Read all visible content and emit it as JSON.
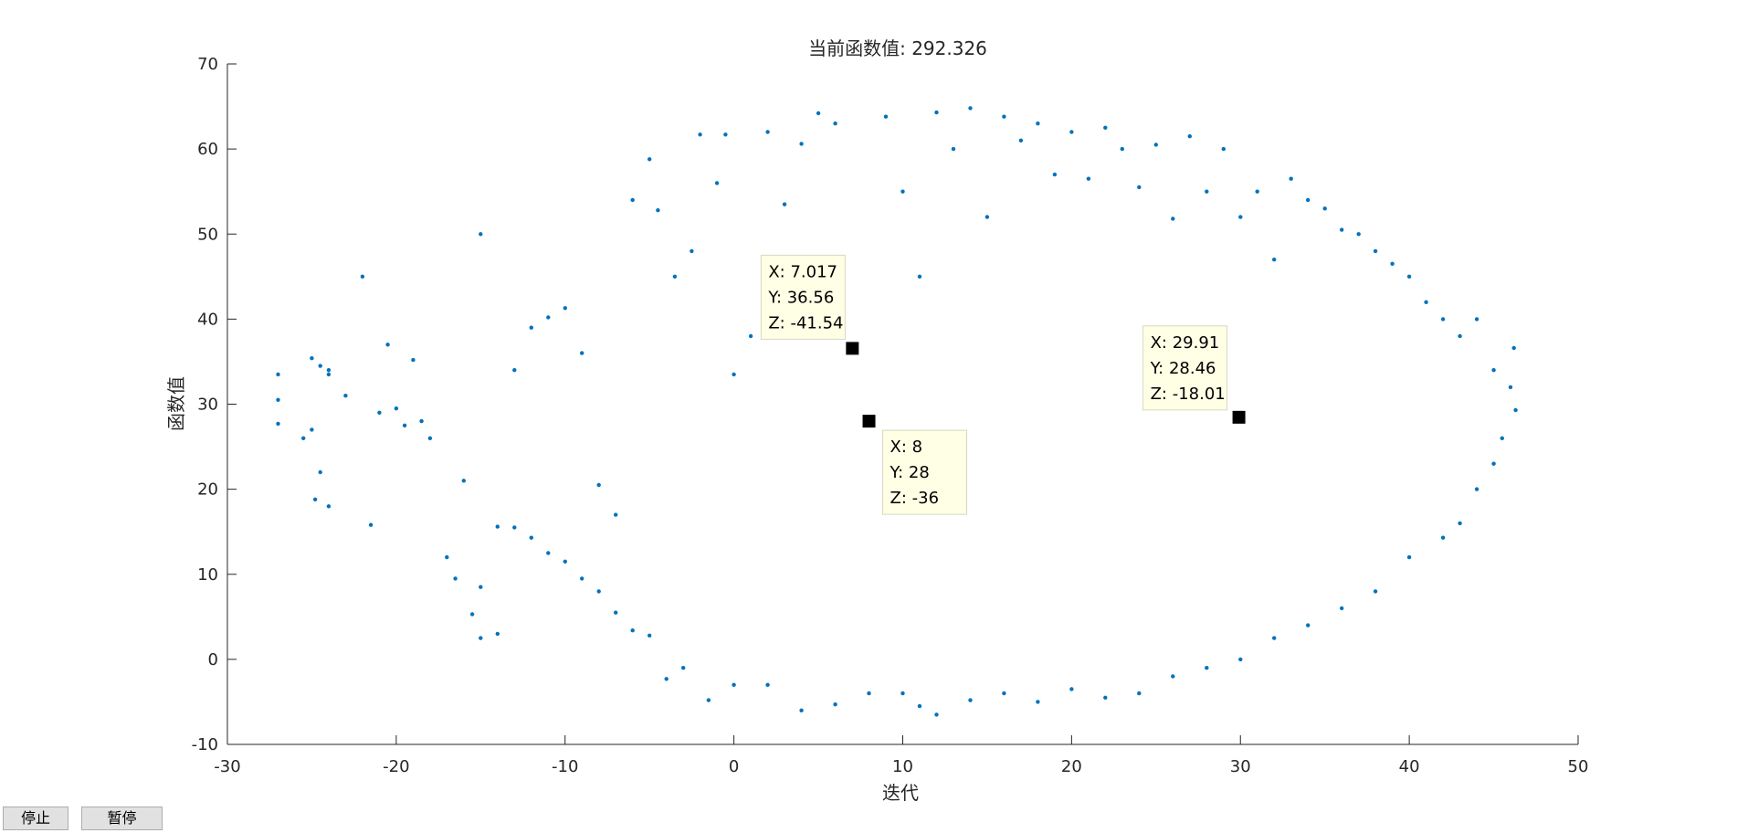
{
  "buttons": {
    "stop_label": "停止",
    "pause_label": "暂停"
  },
  "chart_data": {
    "type": "scatter",
    "title": "当前函数值: 292.326",
    "xlabel": "迭代",
    "ylabel": "函数值",
    "xlim": [
      -30,
      50
    ],
    "ylim": [
      -10,
      70
    ],
    "xticks": [
      -30,
      -20,
      -10,
      0,
      10,
      20,
      30,
      40,
      50
    ],
    "yticks": [
      -10,
      0,
      10,
      20,
      30,
      40,
      50,
      60,
      70
    ],
    "grid": false,
    "marker_color": "#0072bd",
    "points": [
      [
        -27,
        33.5
      ],
      [
        -27,
        30.5
      ],
      [
        -27,
        27.7
      ],
      [
        -25.5,
        26
      ],
      [
        -25,
        27
      ],
      [
        -25,
        35.4
      ],
      [
        -24.5,
        34.5
      ],
      [
        -24,
        34
      ],
      [
        -24,
        33.5
      ],
      [
        -23,
        31
      ],
      [
        -22,
        45
      ],
      [
        -24.8,
        18.8
      ],
      [
        -24,
        18
      ],
      [
        -24.5,
        22
      ],
      [
        -21.5,
        15.8
      ],
      [
        -21,
        29
      ],
      [
        -20.5,
        37
      ],
      [
        -20,
        29.5
      ],
      [
        -19.5,
        27.5
      ],
      [
        -19,
        35.2
      ],
      [
        -18.5,
        28
      ],
      [
        -18,
        26
      ],
      [
        -17,
        12
      ],
      [
        -16.5,
        9.5
      ],
      [
        -16,
        21
      ],
      [
        -15.5,
        5.3
      ],
      [
        -15,
        2.5
      ],
      [
        -15,
        50
      ],
      [
        -15,
        8.5
      ],
      [
        -14,
        3
      ],
      [
        -14,
        15.6
      ],
      [
        -13,
        34
      ],
      [
        -12,
        39
      ],
      [
        -11,
        40.2
      ],
      [
        -10,
        41.3
      ],
      [
        -9,
        36
      ],
      [
        -8,
        20.5
      ],
      [
        -7,
        17
      ],
      [
        -6,
        54
      ],
      [
        -5,
        58.8
      ],
      [
        -4.5,
        52.8
      ],
      [
        -3.5,
        45
      ],
      [
        -2.5,
        48
      ],
      [
        -2,
        61.7
      ],
      [
        -1,
        56
      ],
      [
        -0.5,
        61.7
      ],
      [
        0,
        33.5
      ],
      [
        1,
        38
      ],
      [
        2,
        62
      ],
      [
        3,
        53.5
      ],
      [
        4,
        60.6
      ],
      [
        5,
        64.2
      ],
      [
        6,
        63
      ],
      [
        7,
        36.56
      ],
      [
        8,
        28
      ],
      [
        9,
        63.8
      ],
      [
        10,
        55
      ],
      [
        11,
        45
      ],
      [
        12,
        64.3
      ],
      [
        13,
        60
      ],
      [
        14,
        64.8
      ],
      [
        15,
        52
      ],
      [
        16,
        63.8
      ],
      [
        17,
        61
      ],
      [
        18,
        63
      ],
      [
        19,
        57
      ],
      [
        20,
        62
      ],
      [
        21,
        56.5
      ],
      [
        22,
        62.5
      ],
      [
        23,
        60
      ],
      [
        24,
        55.5
      ],
      [
        25,
        60.5
      ],
      [
        26,
        51.8
      ],
      [
        27,
        61.5
      ],
      [
        28,
        55
      ],
      [
        29,
        60
      ],
      [
        29.91,
        28.46
      ],
      [
        30,
        52
      ],
      [
        31,
        55
      ],
      [
        32,
        47
      ],
      [
        33,
        56.5
      ],
      [
        34,
        54
      ],
      [
        35,
        53
      ],
      [
        36,
        50.5
      ],
      [
        37,
        50
      ],
      [
        38,
        48
      ],
      [
        39,
        46.5
      ],
      [
        40,
        45
      ],
      [
        41,
        42
      ],
      [
        42,
        40
      ],
      [
        43,
        38
      ],
      [
        44,
        40
      ],
      [
        45,
        34
      ],
      [
        46,
        32
      ],
      [
        46.2,
        36.6
      ],
      [
        46.3,
        29.3
      ],
      [
        45.5,
        26
      ],
      [
        45,
        23
      ],
      [
        44,
        20
      ],
      [
        43,
        16
      ],
      [
        42,
        14.3
      ],
      [
        40,
        12
      ],
      [
        38,
        8
      ],
      [
        36,
        6
      ],
      [
        34,
        4
      ],
      [
        32,
        2.5
      ],
      [
        30,
        0
      ],
      [
        28,
        -1
      ],
      [
        26,
        -2
      ],
      [
        24,
        -4
      ],
      [
        22,
        -4.5
      ],
      [
        20,
        -3.5
      ],
      [
        18,
        -5
      ],
      [
        16,
        -4
      ],
      [
        14,
        -4.8
      ],
      [
        12,
        -6.5
      ],
      [
        11,
        -5.5
      ],
      [
        10,
        -4
      ],
      [
        8,
        -4
      ],
      [
        6,
        -5.3
      ],
      [
        4,
        -6
      ],
      [
        2,
        -3
      ],
      [
        0,
        -3
      ],
      [
        -1.5,
        -4.8
      ],
      [
        -3,
        -1
      ],
      [
        -4,
        -2.3
      ],
      [
        -5,
        2.8
      ],
      [
        -6,
        3.4
      ],
      [
        -7,
        5.5
      ],
      [
        -8,
        8
      ],
      [
        -9,
        9.5
      ],
      [
        -10,
        11.5
      ],
      [
        -11,
        12.5
      ],
      [
        -12,
        14.3
      ],
      [
        -13,
        15.5
      ]
    ],
    "datatips": [
      {
        "x": "7.017",
        "y": "36.56",
        "z": "-41.54",
        "lines": [
          "X: 7.017",
          "Y: 36.56",
          "Z: -41.54"
        ]
      },
      {
        "x": "8",
        "y": "28",
        "z": "-36",
        "lines": [
          "X: 8",
          "Y: 28",
          "Z: -36"
        ]
      },
      {
        "x": "29.91",
        "y": "28.46",
        "z": "-18.01",
        "lines": [
          "X: 29.91",
          "Y: 28.46",
          "Z: -18.01"
        ]
      }
    ]
  }
}
